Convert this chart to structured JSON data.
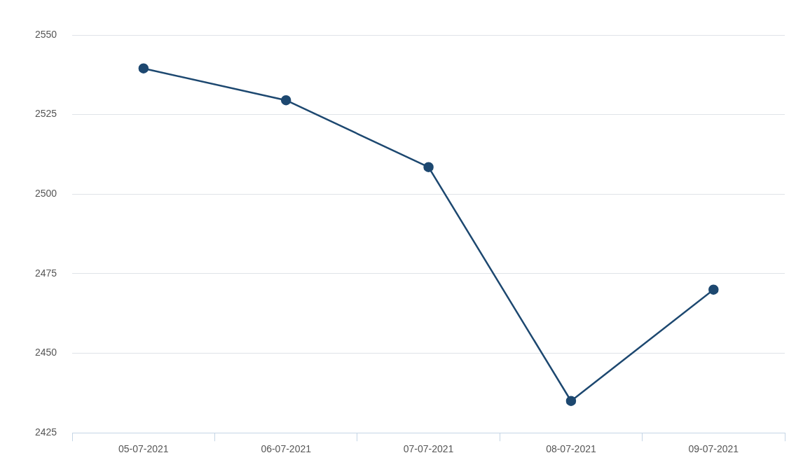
{
  "chart_data": {
    "type": "line",
    "categories": [
      "05-07-2021",
      "06-07-2021",
      "07-07-2021",
      "08-07-2021",
      "09-07-2021"
    ],
    "series": [
      {
        "color": "#1d4870",
        "values": [
          2539.5,
          2529.5,
          2508.5,
          2435,
          2470
        ]
      }
    ],
    "ylim": [
      2425,
      2550
    ],
    "yticks": [
      2425,
      2450,
      2475,
      2500,
      2525,
      2550
    ],
    "grid": "y",
    "legend": false,
    "marker": "circle",
    "line_style": "solid"
  }
}
